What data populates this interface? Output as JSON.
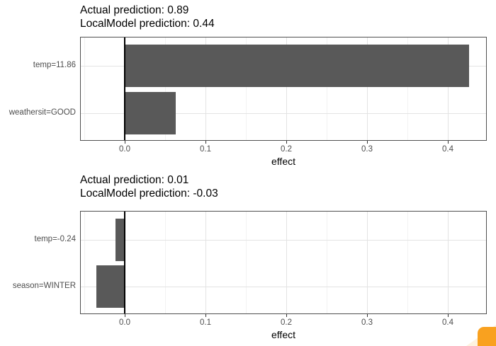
{
  "page": {
    "background": "#ffffff"
  },
  "accent": {
    "corner_shape_color": "#F9A11F"
  },
  "chart_data": [
    {
      "type": "bar",
      "orientation": "horizontal",
      "title": "Actual prediction: 0.89",
      "subtitle": "LocalModel prediction: 0.44",
      "categories": [
        "temp=11.86",
        "weathersit=GOOD"
      ],
      "values": [
        0.426,
        0.063
      ],
      "xlabel": "effect",
      "x_tick_labels": [
        "0.0",
        "0.1",
        "0.2",
        "0.3",
        "0.4"
      ],
      "x_tick_values": [
        0,
        0.1,
        0.2,
        0.3,
        0.4
      ],
      "xlim": [
        -0.055,
        0.448
      ],
      "grid": true,
      "zero_line": true,
      "legend": "none",
      "bar_color": "#595959"
    },
    {
      "type": "bar",
      "orientation": "horizontal",
      "title": "Actual prediction: 0.01",
      "subtitle": "LocalModel prediction: -0.03",
      "categories": [
        "temp=-0.24",
        "season=WINTER"
      ],
      "values": [
        -0.011,
        -0.035
      ],
      "xlabel": "effect",
      "x_tick_labels": [
        "0.0",
        "0.1",
        "0.2",
        "0.3",
        "0.4"
      ],
      "x_tick_values": [
        0,
        0.1,
        0.2,
        0.3,
        0.4
      ],
      "xlim": [
        -0.055,
        0.448
      ],
      "grid": true,
      "zero_line": true,
      "legend": "none",
      "bar_color": "#595959"
    }
  ]
}
